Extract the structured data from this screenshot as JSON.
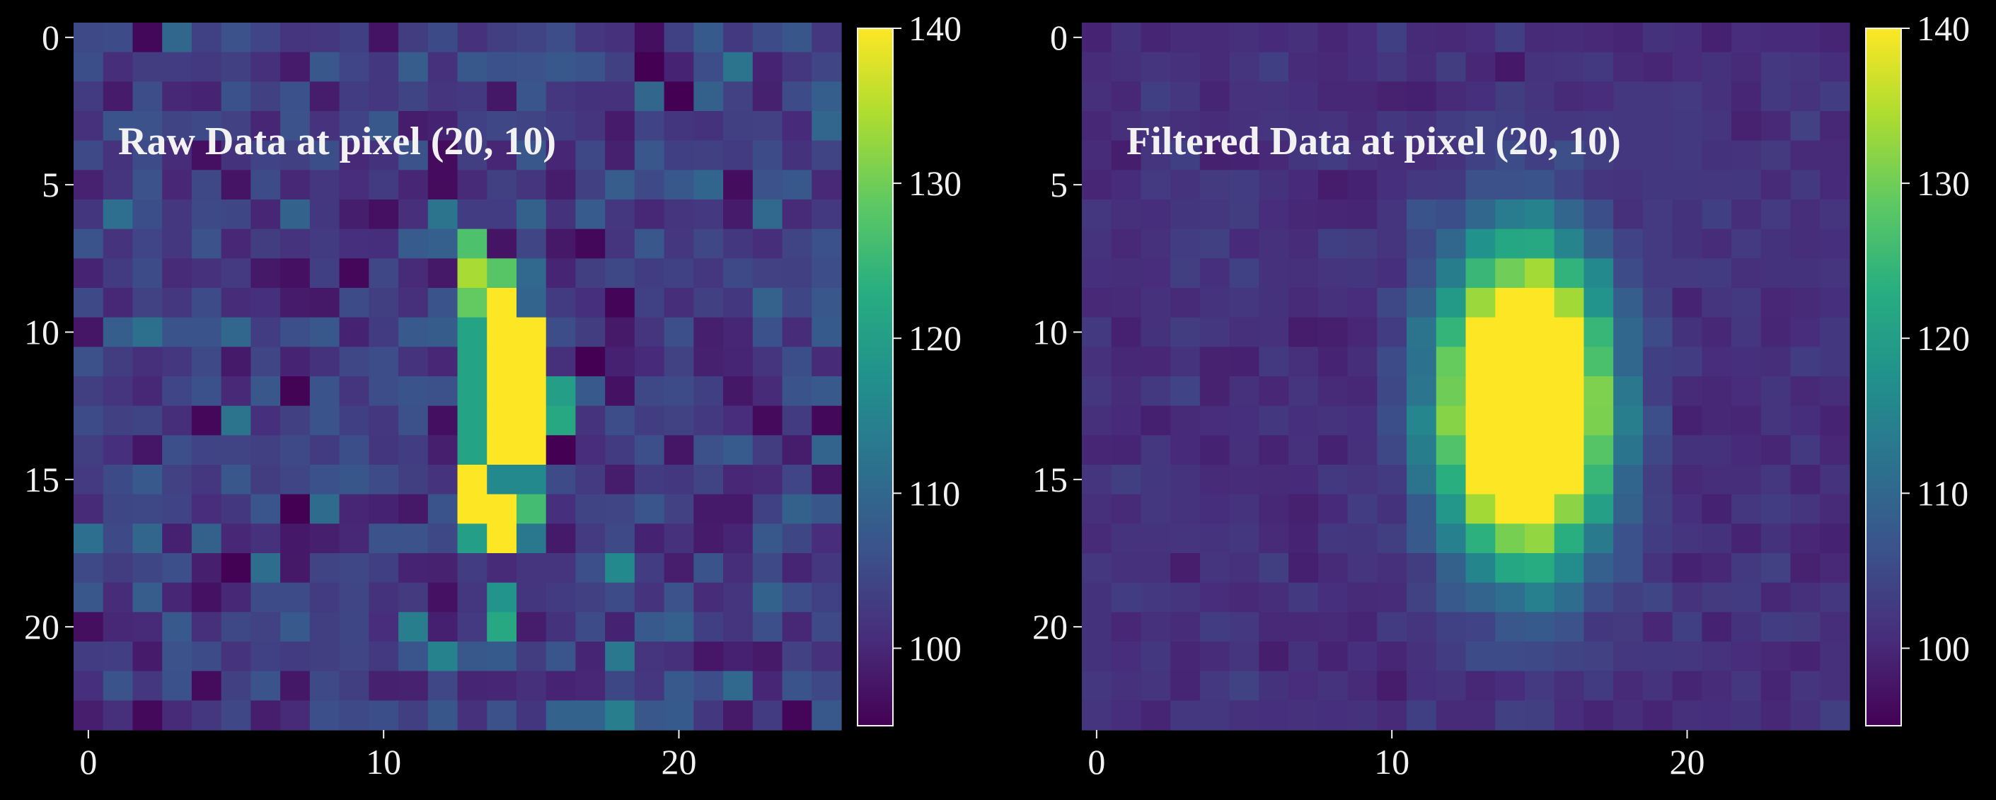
{
  "figure": {
    "background": "#000000"
  },
  "charts": [
    {
      "id": "raw",
      "title": "Raw Data at pixel (20, 10)",
      "xticks": [
        "0",
        "10",
        "20"
      ],
      "yticks": [
        "0",
        "5",
        "10",
        "15",
        "20"
      ],
      "colorbar_ticks": [
        "100",
        "110",
        "120",
        "130",
        "140"
      ]
    },
    {
      "id": "filtered",
      "title": "Filtered Data at pixel (20, 10)",
      "xticks": [
        "0",
        "10",
        "20"
      ],
      "yticks": [
        "0",
        "5",
        "10",
        "15",
        "20"
      ],
      "colorbar_ticks": [
        "100",
        "110",
        "120",
        "130",
        "140"
      ]
    }
  ],
  "chart_data": [
    {
      "type": "heatmap",
      "title": "Raw Data at pixel (20, 10)",
      "colormap": "viridis",
      "vmin": 95,
      "vmax": 140,
      "rows": 24,
      "cols": 26,
      "x_range": [
        -0.5,
        25.5
      ],
      "y_range": [
        -0.5,
        23.5
      ],
      "y_inverted": true,
      "xticks": [
        0,
        10,
        20
      ],
      "yticks": [
        0,
        5,
        10,
        15,
        20
      ],
      "colorbar_ticks": [
        100,
        110,
        120,
        130,
        140
      ],
      "background_mean": 103,
      "background_noise": 3.5,
      "noise_seed": 7,
      "region_values": [
        {
          "rows": [
            7,
            7
          ],
          "cols": [
            13,
            13
          ],
          "value": 127
        },
        {
          "rows": [
            8,
            8
          ],
          "cols": [
            13,
            13
          ],
          "value": 134
        },
        {
          "rows": [
            8,
            8
          ],
          "cols": [
            14,
            14
          ],
          "value": 128
        },
        {
          "rows": [
            9,
            9
          ],
          "cols": [
            13,
            13
          ],
          "value": 129
        },
        {
          "rows": [
            9,
            9
          ],
          "cols": [
            14,
            14
          ],
          "value": 141
        },
        {
          "rows": [
            10,
            14
          ],
          "cols": [
            13,
            13
          ],
          "value": 121
        },
        {
          "rows": [
            10,
            14
          ],
          "cols": [
            14,
            15
          ],
          "value": 142
        },
        {
          "rows": [
            12,
            12
          ],
          "cols": [
            16,
            16
          ],
          "value": 120
        },
        {
          "rows": [
            13,
            13
          ],
          "cols": [
            16,
            16
          ],
          "value": 122
        },
        {
          "rows": [
            15,
            15
          ],
          "cols": [
            13,
            13
          ],
          "value": 142
        },
        {
          "rows": [
            15,
            15
          ],
          "cols": [
            14,
            15
          ],
          "value": 116
        },
        {
          "rows": [
            16,
            16
          ],
          "cols": [
            13,
            14
          ],
          "value": 142
        },
        {
          "rows": [
            16,
            16
          ],
          "cols": [
            15,
            15
          ],
          "value": 126
        },
        {
          "rows": [
            17,
            17
          ],
          "cols": [
            13,
            13
          ],
          "value": 120
        },
        {
          "rows": [
            17,
            17
          ],
          "cols": [
            14,
            14
          ],
          "value": 142
        },
        {
          "rows": [
            17,
            17
          ],
          "cols": [
            15,
            15
          ],
          "value": 113
        },
        {
          "rows": [
            19,
            19
          ],
          "cols": [
            14,
            14
          ],
          "value": 118
        },
        {
          "rows": [
            20,
            20
          ],
          "cols": [
            14,
            14
          ],
          "value": 122
        },
        {
          "rows": [
            21,
            21
          ],
          "cols": [
            12,
            12
          ],
          "value": 115
        },
        {
          "rows": [
            18,
            18
          ],
          "cols": [
            18,
            18
          ],
          "value": 116
        },
        {
          "rows": [
            21,
            21
          ],
          "cols": [
            18,
            18
          ],
          "value": 113
        },
        {
          "rows": [
            23,
            23
          ],
          "cols": [
            18,
            18
          ],
          "value": 114
        },
        {
          "rows": [
            13,
            13
          ],
          "cols": [
            5,
            5
          ],
          "value": 112
        },
        {
          "rows": [
            20,
            20
          ],
          "cols": [
            11,
            11
          ],
          "value": 114
        },
        {
          "rows": [
            6,
            6
          ],
          "cols": [
            12,
            12
          ],
          "value": 112
        },
        {
          "rows": [
            1,
            1
          ],
          "cols": [
            22,
            22
          ],
          "value": 112
        }
      ]
    },
    {
      "type": "heatmap",
      "title": "Filtered Data at pixel (20, 10)",
      "colormap": "viridis",
      "vmin": 95,
      "vmax": 140,
      "rows": 24,
      "cols": 26,
      "x_range": [
        -0.5,
        25.5
      ],
      "y_range": [
        -0.5,
        23.5
      ],
      "y_inverted": true,
      "xticks": [
        0,
        10,
        20
      ],
      "yticks": [
        0,
        5,
        10,
        15,
        20
      ],
      "colorbar_ticks": [
        100,
        110,
        120,
        130,
        140
      ],
      "background_mean": 101,
      "background_noise": 1.2,
      "noise_seed": 11,
      "blob": {
        "center_row": 12.5,
        "center_col": 14.5,
        "peak": 180,
        "sigma_row": 3.4,
        "sigma_col": 1.8
      }
    }
  ]
}
